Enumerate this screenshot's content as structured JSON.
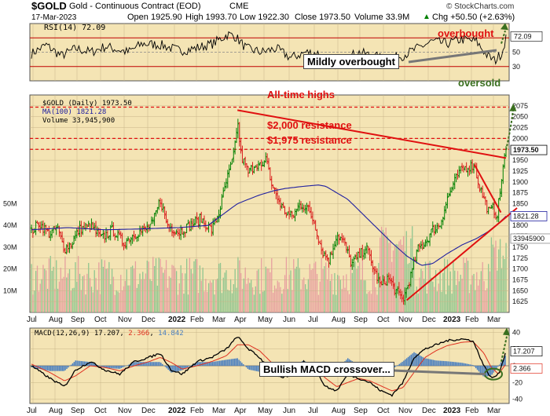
{
  "header": {
    "symbol": "$GOLD",
    "name": "Gold - Continuous Contract (EOD)",
    "exchange": "CME",
    "date": "17-Mar-2023",
    "open": "Open 1925.90",
    "high": "High 1993.70",
    "low": "Low 1922.30",
    "close": "Close 1973.50",
    "volume": "Volume 33.9M",
    "change": "Chg +50.50 (+2.63%)",
    "change_arrow": "▲",
    "watermark": "© StockCharts.com"
  },
  "colors": {
    "panel_bg": "#f4e4b4",
    "up_bar": "#008000",
    "down_bar": "#d81b1b",
    "ma_line": "#2020a0",
    "annotation_red": "#e01010",
    "macd_line": "#000000",
    "signal_line": "#e03020",
    "histogram": "#4a7fc0",
    "oversold_green": "#3a6f1f"
  },
  "rsi_panel": {
    "legend": "RSI(14) 72.09",
    "tick_labels": [
      "70",
      "50",
      "30"
    ],
    "last_value_label": "72.09",
    "overbought_label": "overbought",
    "oversold_label": "oversold",
    "callout": "Mildly overbought"
  },
  "price_panel": {
    "legend_price": "$GOLD (Daily) 1973.50",
    "legend_ma": "MA(100) 1821.28",
    "legend_volume": "Volume 33,945,900",
    "annotations": {
      "ath": "All-time highs",
      "r2000": "$2,000 resistance",
      "r1975": "$1,975 resistance"
    },
    "last_price_label": "1973.50",
    "ma_label": "1821.28",
    "volume_label": "33945900",
    "volume_ticks": [
      "50M",
      "40M",
      "30M",
      "20M",
      "10M"
    ],
    "price_ticks": [
      "2075",
      "2050",
      "2025",
      "2000",
      "1975",
      "1950",
      "1925",
      "1900",
      "1875",
      "1850",
      "1825",
      "1800",
      "1775",
      "1750",
      "1725",
      "1700",
      "1675",
      "1650",
      "1625"
    ]
  },
  "macd_panel": {
    "legend_label": "MACD(12,26,9)",
    "legend_macd": "17.207",
    "legend_signal": "2.366",
    "legend_hist": "14.842",
    "macd_value_label": "17.207",
    "signal_value_label": "2.366",
    "tick_labels": [
      "40",
      "20",
      "0",
      "-20",
      "-40"
    ],
    "callout": "Bullish MACD crossover..."
  },
  "x_axis": {
    "months": [
      "Jul",
      "Aug",
      "Sep",
      "Oct",
      "Nov",
      "Dec",
      "2022",
      "Feb",
      "Mar",
      "Apr",
      "May",
      "Jun",
      "Jul",
      "Aug",
      "Sep",
      "Oct",
      "Nov",
      "Dec",
      "2023",
      "Feb",
      "Mar"
    ],
    "bold": [
      "2022",
      "2023"
    ]
  },
  "chart_data": [
    {
      "type": "line",
      "title": "RSI(14)",
      "ylim": [
        10,
        90
      ],
      "guide_levels": [
        70,
        50,
        30
      ],
      "anchors": [
        [
          0,
          48
        ],
        [
          20,
          60
        ],
        [
          40,
          45
        ],
        [
          60,
          55
        ],
        [
          80,
          50
        ],
        [
          100,
          58
        ],
        [
          130,
          50
        ],
        [
          150,
          62
        ],
        [
          175,
          60
        ],
        [
          200,
          52
        ],
        [
          220,
          55
        ],
        [
          245,
          62
        ],
        [
          265,
          75
        ],
        [
          275,
          72
        ],
        [
          290,
          55
        ],
        [
          310,
          50
        ],
        [
          330,
          55
        ],
        [
          350,
          42
        ],
        [
          370,
          50
        ],
        [
          390,
          48
        ],
        [
          400,
          28
        ],
        [
          420,
          38
        ],
        [
          440,
          50
        ],
        [
          460,
          45
        ],
        [
          480,
          40
        ],
        [
          500,
          45
        ],
        [
          520,
          55
        ],
        [
          540,
          65
        ],
        [
          560,
          62
        ],
        [
          580,
          68
        ],
        [
          600,
          65
        ],
        [
          615,
          45
        ],
        [
          625,
          38
        ],
        [
          635,
          50
        ],
        [
          640,
          72
        ]
      ],
      "last": 72.09
    },
    {
      "type": "line",
      "title": "$GOLD (Daily)",
      "ylim": [
        1600,
        2100
      ],
      "close_anchors": [
        [
          0,
          1785
        ],
        [
          10,
          1805
        ],
        [
          25,
          1780
        ],
        [
          35,
          1795
        ],
        [
          45,
          1745
        ],
        [
          55,
          1760
        ],
        [
          65,
          1790
        ],
        [
          80,
          1800
        ],
        [
          95,
          1770
        ],
        [
          110,
          1790
        ],
        [
          125,
          1760
        ],
        [
          140,
          1780
        ],
        [
          155,
          1790
        ],
        [
          165,
          1805
        ],
        [
          175,
          1860
        ],
        [
          185,
          1800
        ],
        [
          200,
          1785
        ],
        [
          215,
          1800
        ],
        [
          230,
          1815
        ],
        [
          245,
          1790
        ],
        [
          255,
          1830
        ],
        [
          265,
          1900
        ],
        [
          275,
          1960
        ],
        [
          280,
          2040
        ],
        [
          285,
          1960
        ],
        [
          295,
          1920
        ],
        [
          305,
          1945
        ],
        [
          315,
          1930
        ],
        [
          320,
          1960
        ],
        [
          325,
          1900
        ],
        [
          335,
          1860
        ],
        [
          345,
          1830
        ],
        [
          355,
          1820
        ],
        [
          365,
          1850
        ],
        [
          375,
          1840
        ],
        [
          385,
          1805
        ],
        [
          395,
          1740
        ],
        [
          405,
          1720
        ],
        [
          415,
          1780
        ],
        [
          425,
          1760
        ],
        [
          435,
          1710
        ],
        [
          445,
          1730
        ],
        [
          455,
          1750
        ],
        [
          465,
          1700
        ],
        [
          475,
          1660
        ],
        [
          485,
          1680
        ],
        [
          495,
          1650
        ],
        [
          505,
          1630
        ],
        [
          515,
          1680
        ],
        [
          525,
          1745
        ],
        [
          535,
          1760
        ],
        [
          545,
          1790
        ],
        [
          555,
          1800
        ],
        [
          565,
          1860
        ],
        [
          575,
          1900
        ],
        [
          585,
          1930
        ],
        [
          595,
          1935
        ],
        [
          602,
          1940
        ],
        [
          608,
          1895
        ],
        [
          615,
          1860
        ],
        [
          622,
          1830
        ],
        [
          628,
          1840
        ],
        [
          632,
          1820
        ],
        [
          636,
          1860
        ],
        [
          640,
          1925
        ],
        [
          645,
          1973.5
        ]
      ],
      "last_close": 1973.5,
      "ma100": {
        "name": "MA(100)",
        "last": 1821.28,
        "anchors": [
          [
            0,
            1790
          ],
          [
            50,
            1795
          ],
          [
            100,
            1790
          ],
          [
            150,
            1792
          ],
          [
            200,
            1795
          ],
          [
            240,
            1800
          ],
          [
            280,
            1850
          ],
          [
            310,
            1870
          ],
          [
            330,
            1880
          ],
          [
            345,
            1885
          ],
          [
            370,
            1890
          ],
          [
            390,
            1893
          ],
          [
            400,
            1890
          ],
          [
            430,
            1860
          ],
          [
            460,
            1810
          ],
          [
            490,
            1760
          ],
          [
            510,
            1730
          ],
          [
            530,
            1708
          ],
          [
            545,
            1712
          ],
          [
            565,
            1735
          ],
          [
            585,
            1755
          ],
          [
            605,
            1770
          ],
          [
            620,
            1785
          ],
          [
            635,
            1805
          ],
          [
            645,
            1821.28
          ]
        ]
      },
      "resistance_levels": [
        {
          "name": "All-time highs",
          "value": 2072
        },
        {
          "name": "$2,000 resistance",
          "value": 2000
        },
        {
          "name": "$1,975 resistance",
          "value": 1975
        }
      ],
      "trendlines": [
        [
          [
            280,
            2065
          ],
          [
            645,
            1955
          ]
        ],
        [
          [
            510,
            1628
          ],
          [
            660,
            1840
          ]
        ],
        [
          [
            602,
            1940
          ],
          [
            638,
            1830
          ]
        ]
      ],
      "projection": [
        [
          645,
          1973.5
        ],
        [
          655,
          2070
        ]
      ]
    },
    {
      "type": "bar",
      "title": "Volume",
      "ylim": [
        0,
        55000000
      ],
      "last": 33945900
    },
    {
      "type": "line",
      "title": "MACD(12,26,9)",
      "ylim": [
        -45,
        45
      ],
      "macd_anchors": [
        [
          0,
          0
        ],
        [
          25,
          -15
        ],
        [
          45,
          -25
        ],
        [
          60,
          -5
        ],
        [
          80,
          5
        ],
        [
          100,
          -5
        ],
        [
          120,
          -10
        ],
        [
          140,
          5
        ],
        [
          160,
          10
        ],
        [
          175,
          15
        ],
        [
          190,
          -5
        ],
        [
          205,
          -10
        ],
        [
          225,
          5
        ],
        [
          245,
          10
        ],
        [
          265,
          20
        ],
        [
          280,
          35
        ],
        [
          295,
          20
        ],
        [
          310,
          10
        ],
        [
          325,
          -5
        ],
        [
          340,
          -15
        ],
        [
          355,
          -10
        ],
        [
          370,
          5
        ],
        [
          385,
          -5
        ],
        [
          400,
          -25
        ],
        [
          415,
          -30
        ],
        [
          430,
          -10
        ],
        [
          445,
          -15
        ],
        [
          460,
          -20
        ],
        [
          475,
          -30
        ],
        [
          490,
          -35
        ],
        [
          505,
          -20
        ],
        [
          520,
          10
        ],
        [
          535,
          20
        ],
        [
          550,
          25
        ],
        [
          565,
          30
        ],
        [
          585,
          32
        ],
        [
          600,
          30
        ],
        [
          615,
          0
        ],
        [
          625,
          -15
        ],
        [
          635,
          -10
        ],
        [
          645,
          17.2
        ]
      ],
      "signal_anchors": [
        [
          0,
          2
        ],
        [
          25,
          -8
        ],
        [
          45,
          -18
        ],
        [
          60,
          -12
        ],
        [
          80,
          0
        ],
        [
          100,
          -2
        ],
        [
          120,
          -6
        ],
        [
          140,
          0
        ],
        [
          160,
          5
        ],
        [
          175,
          10
        ],
        [
          190,
          4
        ],
        [
          205,
          -4
        ],
        [
          225,
          0
        ],
        [
          245,
          5
        ],
        [
          265,
          12
        ],
        [
          280,
          25
        ],
        [
          295,
          25
        ],
        [
          310,
          18
        ],
        [
          325,
          5
        ],
        [
          340,
          -8
        ],
        [
          355,
          -10
        ],
        [
          370,
          -2
        ],
        [
          385,
          -3
        ],
        [
          400,
          -15
        ],
        [
          415,
          -25
        ],
        [
          430,
          -20
        ],
        [
          445,
          -15
        ],
        [
          460,
          -18
        ],
        [
          475,
          -24
        ],
        [
          490,
          -30
        ],
        [
          505,
          -26
        ],
        [
          520,
          -8
        ],
        [
          535,
          10
        ],
        [
          550,
          18
        ],
        [
          565,
          24
        ],
        [
          585,
          28
        ],
        [
          600,
          29
        ],
        [
          615,
          15
        ],
        [
          625,
          -2
        ],
        [
          635,
          -10
        ],
        [
          645,
          2.4
        ]
      ],
      "last_macd": 17.207,
      "last_signal": 2.366,
      "last_hist": 14.842
    }
  ]
}
